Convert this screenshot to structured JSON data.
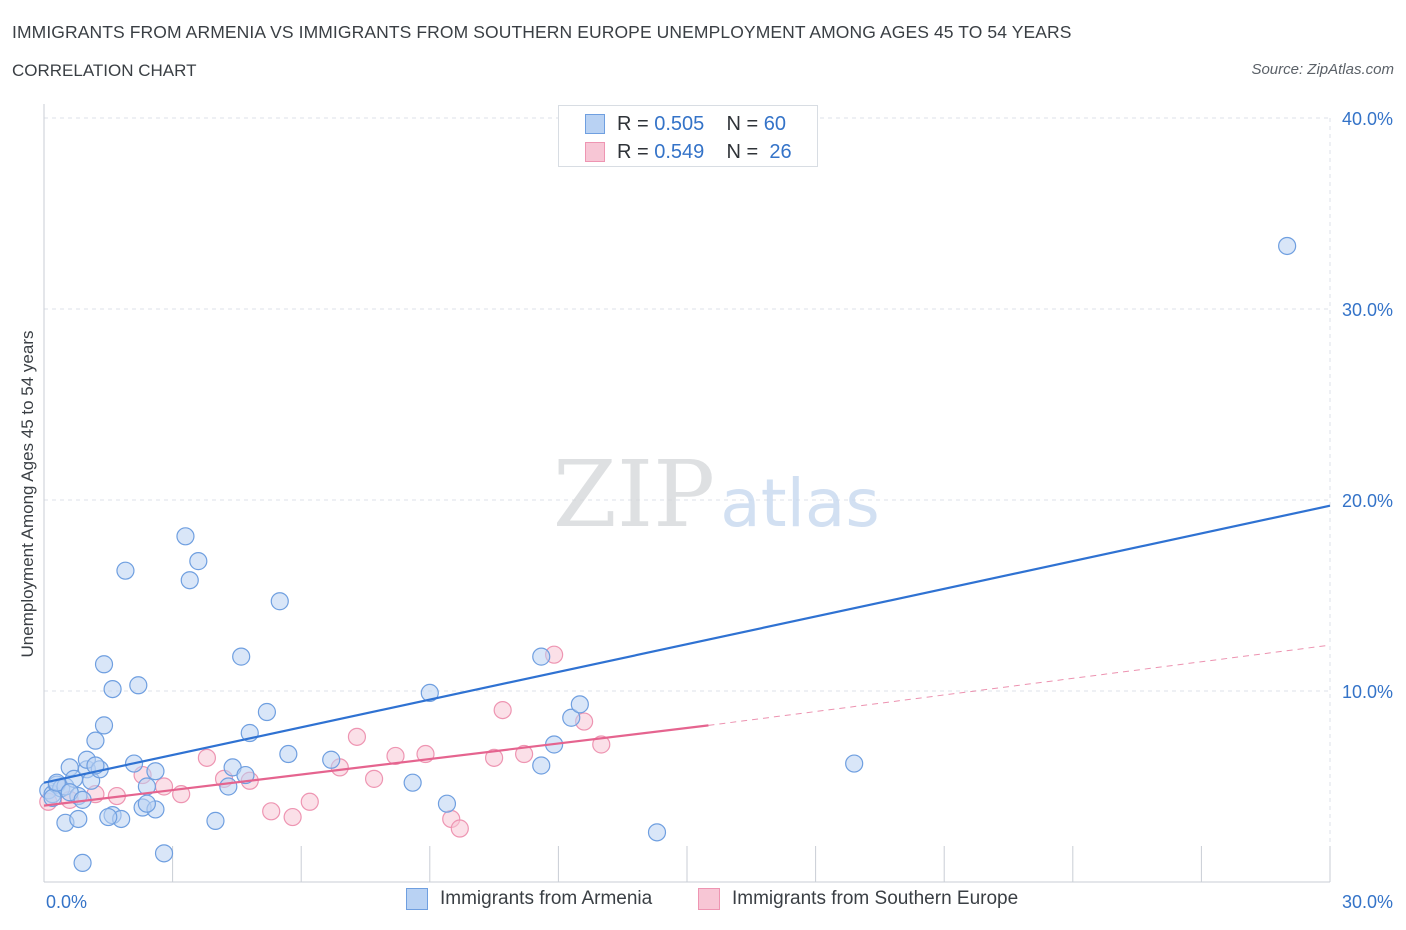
{
  "header": {
    "title": "IMMIGRANTS FROM ARMENIA VS IMMIGRANTS FROM SOUTHERN EUROPE UNEMPLOYMENT AMONG AGES 45 TO 54 YEARS",
    "subtitle": "CORRELATION CHART",
    "source": "Source: ZipAtlas.com"
  },
  "watermark": {
    "zip": "ZIP",
    "atlas": "atlas"
  },
  "legend": {
    "r_label": "R =",
    "n_label": "N =",
    "rows": [
      {
        "r": "0.505",
        "n": "60"
      },
      {
        "r": "0.549",
        "n": "26"
      }
    ]
  },
  "colors": {
    "blue_fill": "#b9d2f3",
    "blue_stroke": "#6f9fe0",
    "blue_line": "#2f72d2",
    "pink_fill": "#f7c6d5",
    "pink_stroke": "#ee95b2",
    "pink_line": "#e5648f",
    "axis_label": "#3473c8",
    "grid": "#dde2e8"
  },
  "chart_data": {
    "type": "scatter",
    "title": "IMMIGRANTS FROM ARMENIA VS IMMIGRANTS FROM SOUTHERN EUROPE UNEMPLOYMENT AMONG AGES 45 TO 54 YEARS",
    "xlabel": "",
    "ylabel": "Unemployment Among Ages 45 to 54 years",
    "xlim": [
      0,
      30
    ],
    "ylim": [
      0,
      40
    ],
    "x_tick_labels": [
      "0.0%",
      "30.0%"
    ],
    "y_ticks": [
      10,
      20,
      30,
      40
    ],
    "y_tick_labels": [
      "10.0%",
      "20.0%",
      "30.0%",
      "40.0%"
    ],
    "grid": true,
    "legend_position": "top-center",
    "series": [
      {
        "name": "Immigrants from Armenia",
        "R": 0.505,
        "N": 60,
        "trend": {
          "x": [
            0,
            30
          ],
          "y": [
            5.2,
            19.7
          ],
          "dashed_to": null
        },
        "points": [
          [
            0.1,
            4.8
          ],
          [
            0.2,
            4.6
          ],
          [
            0.3,
            5.1
          ],
          [
            0.4,
            4.9
          ],
          [
            0.5,
            3.1
          ],
          [
            0.5,
            5.0
          ],
          [
            0.6,
            6.0
          ],
          [
            0.7,
            5.4
          ],
          [
            0.8,
            4.5
          ],
          [
            0.8,
            3.3
          ],
          [
            0.9,
            1.0
          ],
          [
            1.0,
            5.9
          ],
          [
            1.0,
            6.4
          ],
          [
            1.1,
            5.3
          ],
          [
            1.2,
            7.4
          ],
          [
            1.3,
            5.9
          ],
          [
            1.4,
            11.4
          ],
          [
            1.4,
            8.2
          ],
          [
            1.6,
            10.1
          ],
          [
            1.6,
            3.5
          ],
          [
            1.8,
            3.3
          ],
          [
            1.9,
            16.3
          ],
          [
            2.1,
            6.2
          ],
          [
            2.2,
            10.3
          ],
          [
            2.3,
            3.9
          ],
          [
            2.4,
            5.0
          ],
          [
            2.6,
            5.8
          ],
          [
            2.6,
            3.8
          ],
          [
            2.8,
            1.5
          ],
          [
            3.3,
            18.1
          ],
          [
            3.4,
            15.8
          ],
          [
            3.6,
            16.8
          ],
          [
            4.0,
            3.2
          ],
          [
            4.3,
            5.0
          ],
          [
            4.4,
            6.0
          ],
          [
            4.6,
            11.8
          ],
          [
            4.7,
            5.6
          ],
          [
            4.8,
            7.8
          ],
          [
            5.2,
            8.9
          ],
          [
            5.5,
            14.7
          ],
          [
            5.7,
            6.7
          ],
          [
            6.7,
            6.4
          ],
          [
            8.6,
            5.2
          ],
          [
            9.0,
            9.9
          ],
          [
            9.4,
            4.1
          ],
          [
            11.6,
            11.8
          ],
          [
            11.6,
            6.1
          ],
          [
            11.9,
            7.2
          ],
          [
            12.3,
            8.6
          ],
          [
            12.5,
            9.3
          ],
          [
            14.3,
            2.6
          ],
          [
            18.9,
            6.2
          ],
          [
            29.0,
            33.3
          ],
          [
            0.2,
            4.4
          ],
          [
            0.3,
            5.2
          ],
          [
            1.5,
            3.4
          ],
          [
            2.4,
            4.1
          ],
          [
            0.6,
            4.7
          ],
          [
            1.2,
            6.1
          ],
          [
            0.9,
            4.3
          ]
        ]
      },
      {
        "name": "Immigrants from Southern Europe",
        "R": 0.549,
        "N": 26,
        "trend": {
          "x": [
            0,
            15.5
          ],
          "y": [
            4.0,
            8.2
          ],
          "dashed_to": [
            30,
            12.4
          ]
        },
        "points": [
          [
            0.1,
            4.2
          ],
          [
            0.6,
            4.3
          ],
          [
            1.2,
            4.6
          ],
          [
            1.7,
            4.5
          ],
          [
            2.3,
            5.6
          ],
          [
            2.8,
            5.0
          ],
          [
            3.2,
            4.6
          ],
          [
            3.8,
            6.5
          ],
          [
            4.2,
            5.4
          ],
          [
            4.8,
            5.3
          ],
          [
            5.3,
            3.7
          ],
          [
            5.8,
            3.4
          ],
          [
            6.2,
            4.2
          ],
          [
            6.9,
            6.0
          ],
          [
            7.3,
            7.6
          ],
          [
            7.7,
            5.4
          ],
          [
            8.2,
            6.6
          ],
          [
            8.9,
            6.7
          ],
          [
            9.5,
            3.3
          ],
          [
            9.7,
            2.8
          ],
          [
            10.5,
            6.5
          ],
          [
            10.7,
            9.0
          ],
          [
            11.2,
            6.7
          ],
          [
            11.9,
            11.9
          ],
          [
            12.6,
            8.4
          ],
          [
            13.0,
            7.2
          ]
        ]
      }
    ]
  }
}
